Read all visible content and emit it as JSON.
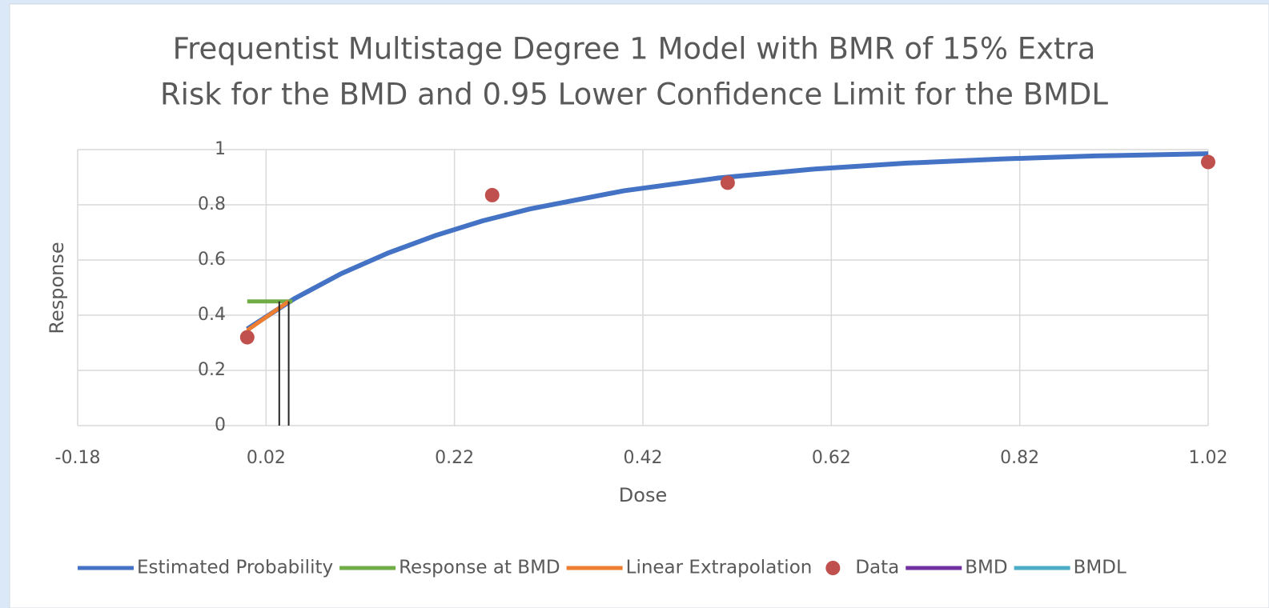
{
  "chart_data": {
    "type": "line",
    "title": [
      "Frequentist Multistage Degree 1 Model with BMR of 15% Extra",
      "Risk for the BMD and 0.95 Lower Confidence Limit for the BMDL"
    ],
    "x_label": "Dose",
    "y_label": "Response",
    "xlim": [
      -0.18,
      1.02
    ],
    "xticks": [
      -0.18,
      0.02,
      0.22,
      0.42,
      0.62,
      0.82,
      1.02
    ],
    "ylim": [
      0,
      1
    ],
    "yticks": [
      0,
      0.2,
      0.4,
      0.6,
      0.8,
      1
    ],
    "grid": true,
    "legend": "bottom",
    "series": [
      {
        "name": "Estimated Probability",
        "type": "line",
        "color": "#4472c4",
        "x": [
          0,
          0.05,
          0.1,
          0.15,
          0.2,
          0.25,
          0.3,
          0.4,
          0.5,
          0.6,
          0.7,
          0.8,
          0.9,
          1.02
        ],
        "values": [
          0.35,
          0.46,
          0.551,
          0.626,
          0.689,
          0.742,
          0.785,
          0.851,
          0.897,
          0.929,
          0.951,
          0.966,
          0.977,
          0.985
        ]
      },
      {
        "name": "Response at BMD",
        "type": "line",
        "color": "#70ad47",
        "x": [
          0,
          0.048
        ],
        "values": [
          0.45,
          0.45
        ]
      },
      {
        "name": "Linear Extrapolation",
        "type": "line",
        "color": "#ed7d31",
        "x": [
          0,
          0.044
        ],
        "values": [
          0.345,
          0.45
        ]
      },
      {
        "name": "Data",
        "type": "scatter",
        "color": "#c0504d",
        "x": [
          0,
          0.26,
          0.51,
          1.02
        ],
        "values": [
          0.32,
          0.835,
          0.88,
          0.955
        ]
      },
      {
        "name": "BMD",
        "type": "line",
        "color": "#7030a0",
        "x": [
          0.044,
          0.044
        ],
        "values": [
          0,
          0.45
        ]
      },
      {
        "name": "BMDL",
        "type": "line",
        "color": "#4bacc6",
        "x": [
          0.034,
          0.034
        ],
        "values": [
          0,
          0.45
        ]
      }
    ]
  }
}
